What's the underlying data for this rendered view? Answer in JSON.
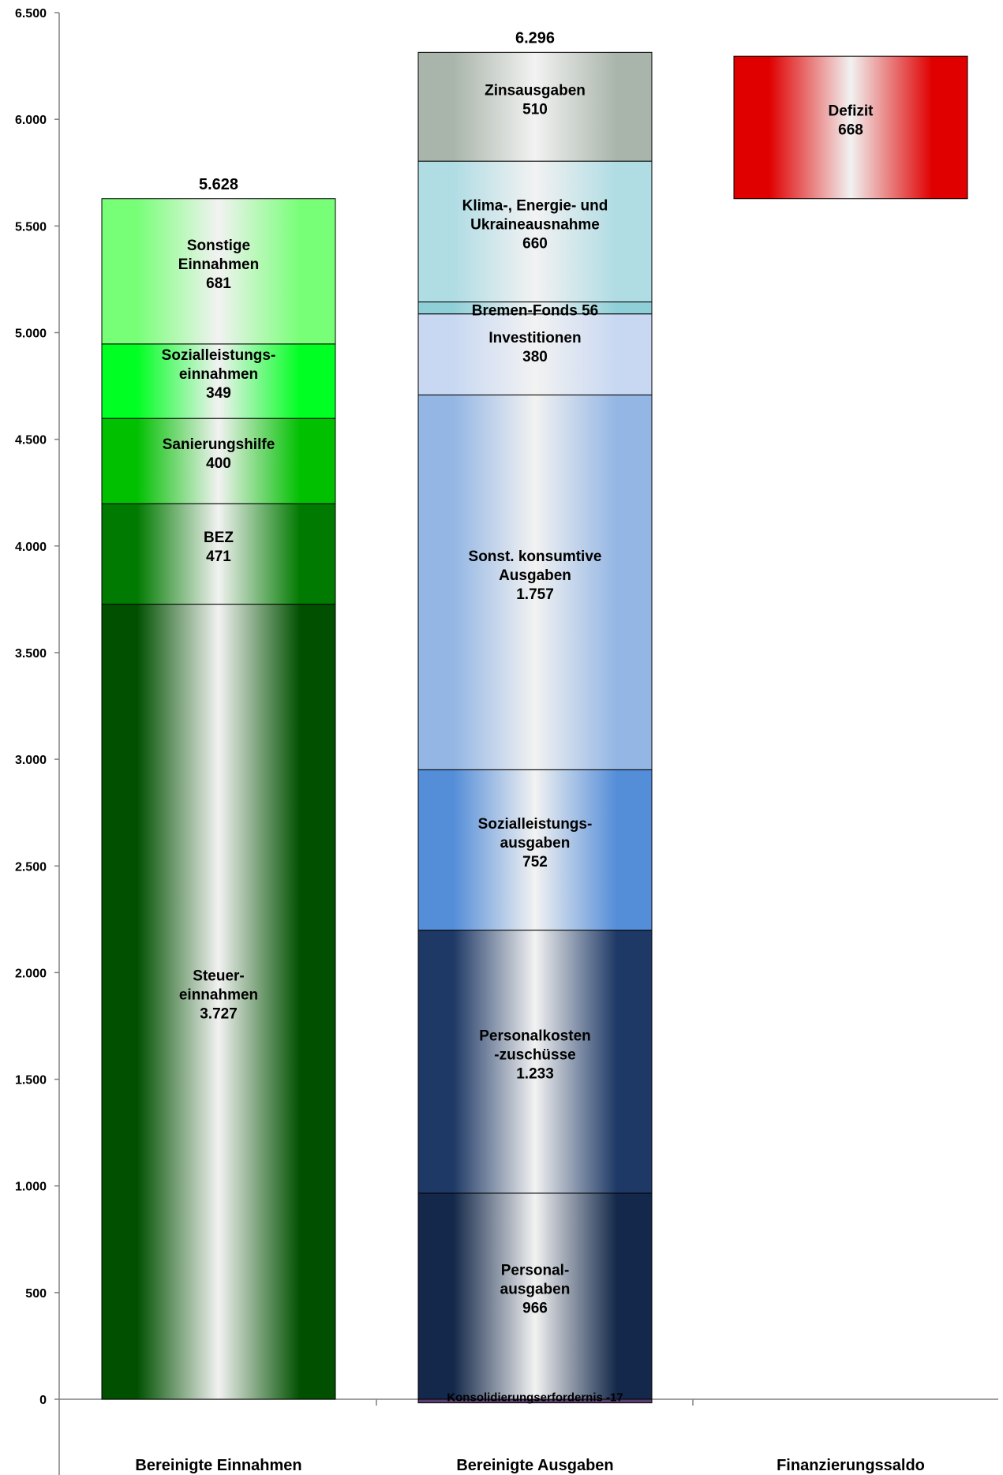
{
  "chart_data": {
    "type": "bar",
    "stacked": true,
    "ylim": [
      -500,
      6500
    ],
    "yticks": [
      6500,
      6000,
      5500,
      5000,
      4500,
      4000,
      3500,
      3000,
      2500,
      2000,
      1500,
      1000,
      500,
      0
    ],
    "ytick_labels": [
      "6.500",
      "6.000",
      "5.500",
      "5.000",
      "4.500",
      "4.000",
      "3.500",
      "3.000",
      "2.500",
      "2.000",
      "1.500",
      "1.000",
      "500",
      "0"
    ],
    "categories": [
      "Bereinigte Einnahmen",
      "Bereinigte Ausgaben",
      "Finanzierungssaldo"
    ],
    "bars": [
      {
        "category": "Bereinigte Einnahmen",
        "total_label": "5.628",
        "segments": [
          {
            "lines": [
              "Steuer-",
              "einnahmen",
              "3.727"
            ],
            "value": 3727,
            "color": "#005000"
          },
          {
            "lines": [
              "BEZ",
              "471"
            ],
            "value": 471,
            "color": "#007a00"
          },
          {
            "lines": [
              "Sanierungshilfe",
              "400"
            ],
            "value": 400,
            "color": "#00c000"
          },
          {
            "lines": [
              "Sozialleistungs-",
              "einnahmen",
              "349"
            ],
            "value": 349,
            "color": "#00ff22"
          },
          {
            "lines": [
              "Sonstige",
              "Einnahmen",
              "681"
            ],
            "value": 681,
            "color": "#77ff77"
          }
        ]
      },
      {
        "category": "Bereinigte Ausgaben",
        "total_label": "6.296",
        "negative_segment": {
          "label": "Konsolidierungserfordernis -17",
          "value": -17,
          "color": "#5a3c6e"
        },
        "segments": [
          {
            "lines": [
              "Personal-",
              "ausgaben",
              "966"
            ],
            "value": 966,
            "color": "#13284a"
          },
          {
            "lines": [
              "Personalkosten",
              "-zuschüsse",
              "1.233"
            ],
            "value": 1233,
            "color": "#1e3966"
          },
          {
            "lines": [
              "Sozialleistungs-",
              "ausgaben",
              "752"
            ],
            "value": 752,
            "color": "#548dd8"
          },
          {
            "lines": [
              "Sonst. konsumtive",
              "Ausgaben",
              "1.757"
            ],
            "value": 1757,
            "color": "#93b6e4"
          },
          {
            "lines": [
              "Investitionen",
              "380"
            ],
            "value": 380,
            "color": "#c8d8f2"
          },
          {
            "lines": [
              "Bremen-Fonds 56"
            ],
            "value": 56,
            "color": "#8fcfd8"
          },
          {
            "lines": [
              "Klima-, Energie- und",
              "Ukraineausnahme",
              "660"
            ],
            "value": 660,
            "color": "#b0dce4"
          },
          {
            "lines": [
              "Zinsausgaben",
              "510"
            ],
            "value": 510,
            "color": "#a9b5aa"
          }
        ]
      },
      {
        "category": "Finanzierungssaldo",
        "floating": true,
        "base": 5628,
        "segments": [
          {
            "lines": [
              "Defizit",
              "668"
            ],
            "value": 668,
            "color": "#e00000"
          }
        ]
      }
    ]
  }
}
